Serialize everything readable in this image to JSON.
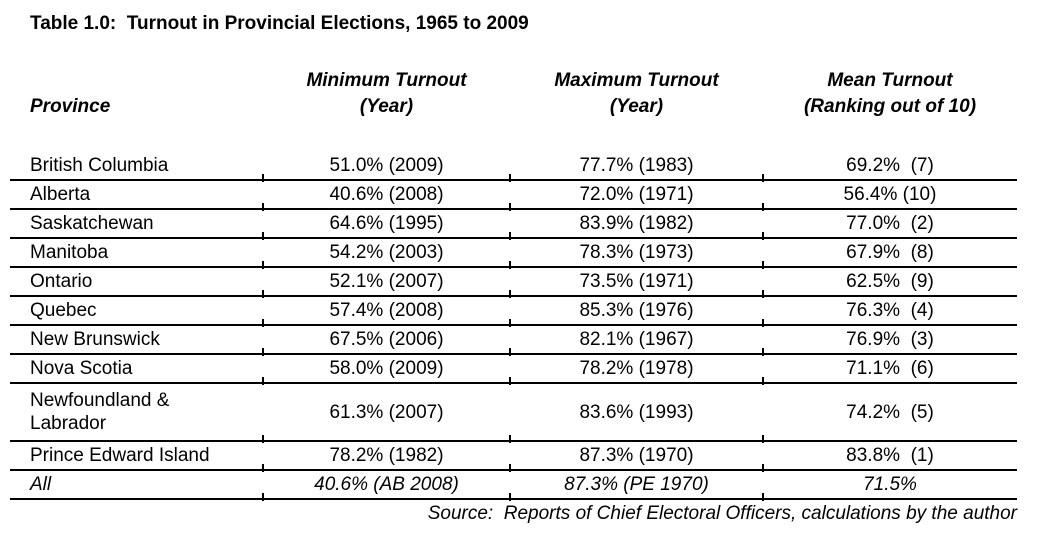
{
  "title": "Table 1.0:  Turnout in Provincial Elections, 1965 to 2009",
  "table": {
    "columns": [
      {
        "label": "Province"
      },
      {
        "label": "Minimum Turnout\n(Year)"
      },
      {
        "label": "Maximum Turnout\n(Year)"
      },
      {
        "label": "Mean Turnout\n(Ranking out of 10)"
      }
    ],
    "rows": [
      {
        "province": "British Columbia",
        "min": "51.0% (2009)",
        "max": "77.7% (1983)",
        "mean": "69.2%  (7)"
      },
      {
        "province": "Alberta",
        "min": "40.6% (2008)",
        "max": "72.0% (1971)",
        "mean": "56.4% (10)"
      },
      {
        "province": "Saskatchewan",
        "min": "64.6% (1995)",
        "max": "83.9% (1982)",
        "mean": "77.0%  (2)"
      },
      {
        "province": "Manitoba",
        "min": "54.2% (2003)",
        "max": "78.3% (1973)",
        "mean": "67.9%  (8)"
      },
      {
        "province": "Ontario",
        "min": "52.1% (2007)",
        "max": "73.5% (1971)",
        "mean": "62.5%  (9)"
      },
      {
        "province": "Quebec",
        "min": "57.4% (2008)",
        "max": "85.3% (1976)",
        "mean": "76.3%  (4)"
      },
      {
        "province": "New Brunswick",
        "min": "67.5% (2006)",
        "max": "82.1% (1967)",
        "mean": "76.9%  (3)"
      },
      {
        "province": "Nova Scotia",
        "min": "58.0% (2009)",
        "max": "78.2% (1978)",
        "mean": "71.1%  (6)"
      },
      {
        "province": "Newfoundland &\nLabrador",
        "min": "61.3% (2007)",
        "max": "83.6% (1993)",
        "mean": "74.2%  (5)"
      },
      {
        "province": "Prince Edward Island",
        "min": "78.2% (1982)",
        "max": "87.3% (1970)",
        "mean": "83.8%  (1)"
      },
      {
        "province": "All",
        "min": "40.6% (AB 2008)",
        "max": "87.3% (PE 1970)",
        "mean": "71.5%"
      }
    ],
    "source": "Source:  Reports of Chief Electoral Officers, calculations by the author"
  }
}
